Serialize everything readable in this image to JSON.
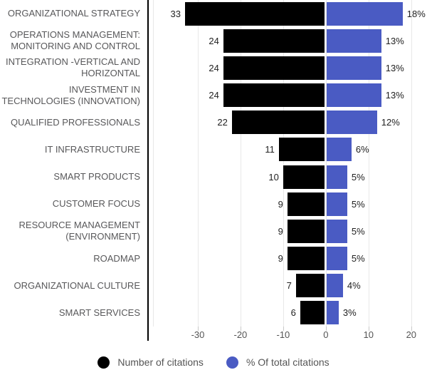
{
  "chart_data": {
    "type": "bar",
    "variant": "horizontal-diverging",
    "title": "",
    "categories": [
      "ORGANIZATIONAL STRATEGY",
      "OPERATIONS MANAGEMENT:\nMONITORING AND CONTROL",
      "INTEGRATION -VERTICAL AND\nHORIZONTAL",
      "INVESTMENT IN\nTECHNOLOGIES (INNOVATION)",
      "QUALIFIED PROFESSIONALS",
      "IT INFRASTRUCTURE",
      "SMART PRODUCTS",
      "CUSTOMER FOCUS",
      "RESOURCE MANAGEMENT\n(ENVIRONMENT)",
      "ROADMAP",
      "ORGANIZATIONAL CULTURE",
      "SMART SERVICES"
    ],
    "series": [
      {
        "name": "Number of citations",
        "color": "#000000",
        "direction": "left",
        "values": [
          33,
          24,
          24,
          24,
          22,
          11,
          10,
          9,
          9,
          9,
          7,
          6
        ],
        "value_labels": [
          "33",
          "24",
          "24",
          "24",
          "22",
          "11",
          "10",
          "9",
          "9",
          "9",
          "7",
          "6"
        ]
      },
      {
        "name": "% Of total citations",
        "color": "#4a5bc3",
        "direction": "right",
        "values": [
          18,
          13,
          13,
          13,
          12,
          6,
          5,
          5,
          5,
          5,
          4,
          3
        ],
        "value_labels": [
          "18%",
          "13%",
          "13%",
          "13%",
          "12%",
          "6%",
          "5%",
          "5%",
          "5%",
          "5%",
          "4%",
          "3%"
        ]
      }
    ],
    "xaxis": {
      "ticks": [
        -30,
        -20,
        -10,
        0,
        10,
        20
      ],
      "tick_labels": [
        "-30",
        "-20",
        "-10",
        "0",
        "10",
        "20"
      ],
      "min": -40.5,
      "max": 23.7
    },
    "grid": true,
    "legend_position": "bottom"
  },
  "legend": {
    "items": [
      {
        "label": "Number of citations",
        "color": "#000000"
      },
      {
        "label": "% Of total citations",
        "color": "#4a5bc3"
      }
    ]
  },
  "colors": {
    "background": "#ffffff",
    "axis_line": "#000000",
    "gridline": "#e8e8e8",
    "tick": "#c9c9c9",
    "category_label": "#58585a",
    "axis_label": "#555555",
    "value_label": "#212121",
    "legend_label": "#555555"
  }
}
